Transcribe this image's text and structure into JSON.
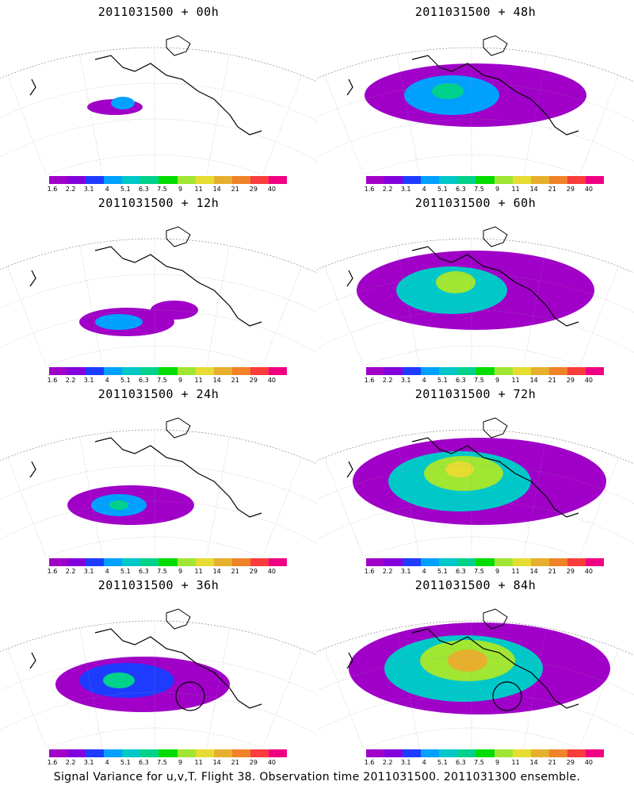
{
  "panels": [
    {
      "title": "2011031500 + 00h",
      "hour": 0,
      "circle": false
    },
    {
      "title": "2011031500 + 48h",
      "hour": 48,
      "circle": false
    },
    {
      "title": "2011031500 + 12h",
      "hour": 12,
      "circle": false
    },
    {
      "title": "2011031500 + 60h",
      "hour": 60,
      "circle": false
    },
    {
      "title": "2011031500 + 24h",
      "hour": 24,
      "circle": false
    },
    {
      "title": "2011031500 + 72h",
      "hour": 72,
      "circle": false
    },
    {
      "title": "2011031500 + 36h",
      "hour": 36,
      "circle": true
    },
    {
      "title": "2011031500 + 84h",
      "hour": 84,
      "circle": true
    }
  ],
  "colorbar": {
    "labels": [
      "1.6",
      "2.2",
      "3.1",
      "4",
      "5.1",
      "6.3",
      "7.5",
      "9",
      "11",
      "14",
      "21",
      "29",
      "40"
    ],
    "colors": [
      "#a000c8",
      "#8200dc",
      "#1e3cff",
      "#00a0ff",
      "#00c8c8",
      "#00d28c",
      "#00dc00",
      "#a0e632",
      "#e6dc32",
      "#e6af2d",
      "#f08228",
      "#fa3c3c",
      "#f00082"
    ]
  },
  "footer": "Signal Variance for u,v,T. Flight 38. Observation time 2011031500. 2011031300 ensemble."
}
